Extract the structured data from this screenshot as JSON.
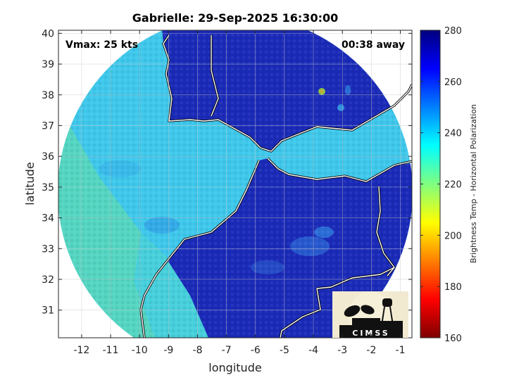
{
  "chart_data": {
    "type": "heatmap",
    "title": "Gabrielle: 29-Sep-2025 16:30:00",
    "xlabel": "longitude",
    "ylabel": "latitude",
    "xlim": [
      -12.8,
      -0.6
    ],
    "ylim": [
      30.1,
      40.1
    ],
    "xticks": [
      -12,
      -11,
      -10,
      -9,
      -8,
      -7,
      -6,
      -5,
      -4,
      -3,
      -2,
      -1
    ],
    "yticks": [
      31,
      32,
      33,
      34,
      35,
      36,
      37,
      38,
      39,
      40
    ],
    "grid": true,
    "annotations": {
      "vmax": "Vmax: 25 kts",
      "distance": "00:38 away"
    },
    "colorbar": {
      "label": "Brightness Temp - Horizontal Polarization",
      "range": [
        160,
        280
      ],
      "ticks": [
        160,
        180,
        200,
        220,
        240,
        260,
        280
      ],
      "colormap": "jet"
    },
    "logo": {
      "text": "CIMSS"
    },
    "colors": {
      "land": "#1a2ab8",
      "ocean": "#3ec8ec",
      "coast": "#ffffff"
    }
  }
}
